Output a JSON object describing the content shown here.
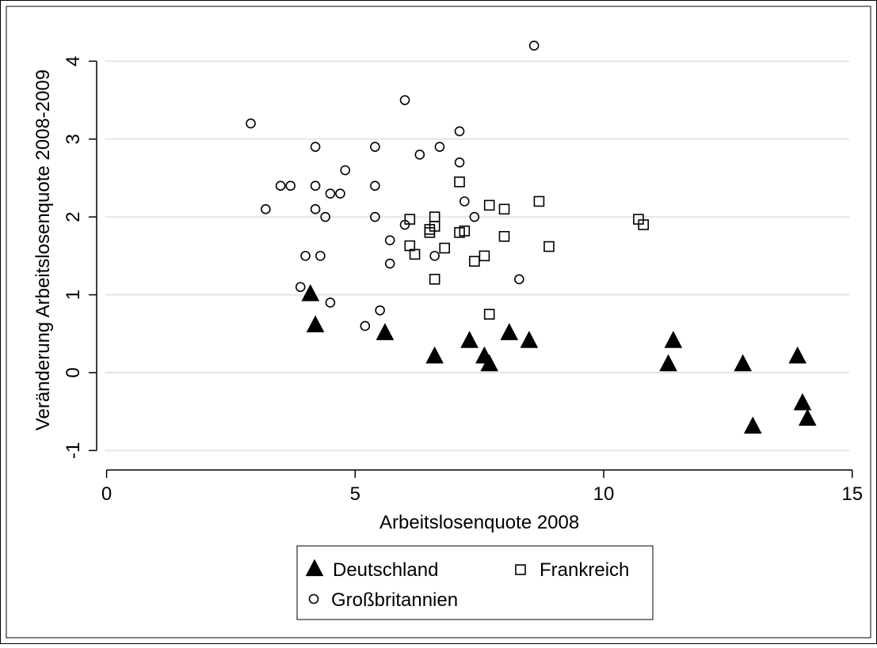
{
  "chart_data": {
    "type": "scatter",
    "xlabel": "Arbeitslosenquote 2008",
    "ylabel": "Veränderung Arbeitslosenquote 2008-2009",
    "xlim": [
      -0.2,
      15.1
    ],
    "ylim": [
      -1.25,
      4.4
    ],
    "x_ticks": [
      0,
      5,
      10,
      15
    ],
    "y_ticks": [
      -1,
      0,
      1,
      2,
      3,
      4
    ],
    "grid": true,
    "legend_position": "bottom",
    "series": [
      {
        "name": "Deutschland",
        "marker": "filled-triangle",
        "color": "#000000",
        "points": [
          [
            4.1,
            1.0
          ],
          [
            4.2,
            0.6
          ],
          [
            5.6,
            0.5
          ],
          [
            6.6,
            0.2
          ],
          [
            7.3,
            0.4
          ],
          [
            7.6,
            0.2
          ],
          [
            7.7,
            0.1
          ],
          [
            8.1,
            0.5
          ],
          [
            8.5,
            0.4
          ],
          [
            11.3,
            0.1
          ],
          [
            11.4,
            0.4
          ],
          [
            12.8,
            0.1
          ],
          [
            13.0,
            -0.7
          ],
          [
            13.9,
            0.2
          ],
          [
            14.0,
            -0.4
          ],
          [
            14.1,
            -0.6
          ]
        ]
      },
      {
        "name": "Frankreich",
        "marker": "hollow-square",
        "color": "#000000",
        "points": [
          [
            6.1,
            1.97
          ],
          [
            6.5,
            1.8
          ],
          [
            6.5,
            1.84
          ],
          [
            6.6,
            2.0
          ],
          [
            6.6,
            1.88
          ],
          [
            6.1,
            1.63
          ],
          [
            6.2,
            1.52
          ],
          [
            6.8,
            1.6
          ],
          [
            6.6,
            1.2
          ],
          [
            7.1,
            2.45
          ],
          [
            7.1,
            1.8
          ],
          [
            7.2,
            1.82
          ],
          [
            7.4,
            1.43
          ],
          [
            7.6,
            1.5
          ],
          [
            7.7,
            2.15
          ],
          [
            8.0,
            2.1
          ],
          [
            8.0,
            1.75
          ],
          [
            8.7,
            2.2
          ],
          [
            8.9,
            1.62
          ],
          [
            7.7,
            0.75
          ],
          [
            10.7,
            1.97
          ],
          [
            10.8,
            1.9
          ]
        ]
      },
      {
        "name": "Großbritannien",
        "marker": "hollow-circle",
        "color": "#000000",
        "points": [
          [
            2.9,
            3.2
          ],
          [
            3.2,
            2.1
          ],
          [
            3.5,
            2.4
          ],
          [
            3.7,
            2.4
          ],
          [
            3.9,
            1.1
          ],
          [
            4.0,
            1.5
          ],
          [
            4.2,
            2.9
          ],
          [
            4.2,
            2.4
          ],
          [
            4.2,
            2.1
          ],
          [
            4.3,
            1.5
          ],
          [
            4.4,
            2.0
          ],
          [
            4.5,
            2.3
          ],
          [
            4.5,
            0.9
          ],
          [
            4.7,
            2.3
          ],
          [
            4.8,
            2.6
          ],
          [
            5.2,
            0.6
          ],
          [
            5.4,
            2.9
          ],
          [
            5.4,
            2.4
          ],
          [
            5.4,
            2.0
          ],
          [
            5.5,
            0.8
          ],
          [
            5.7,
            1.7
          ],
          [
            5.7,
            1.4
          ],
          [
            6.0,
            3.5
          ],
          [
            6.0,
            1.9
          ],
          [
            6.3,
            2.8
          ],
          [
            6.6,
            1.5
          ],
          [
            6.7,
            2.9
          ],
          [
            7.1,
            3.1
          ],
          [
            7.1,
            2.7
          ],
          [
            7.2,
            2.2
          ],
          [
            7.4,
            2.0
          ],
          [
            8.3,
            1.2
          ],
          [
            8.6,
            4.2
          ]
        ]
      }
    ]
  }
}
